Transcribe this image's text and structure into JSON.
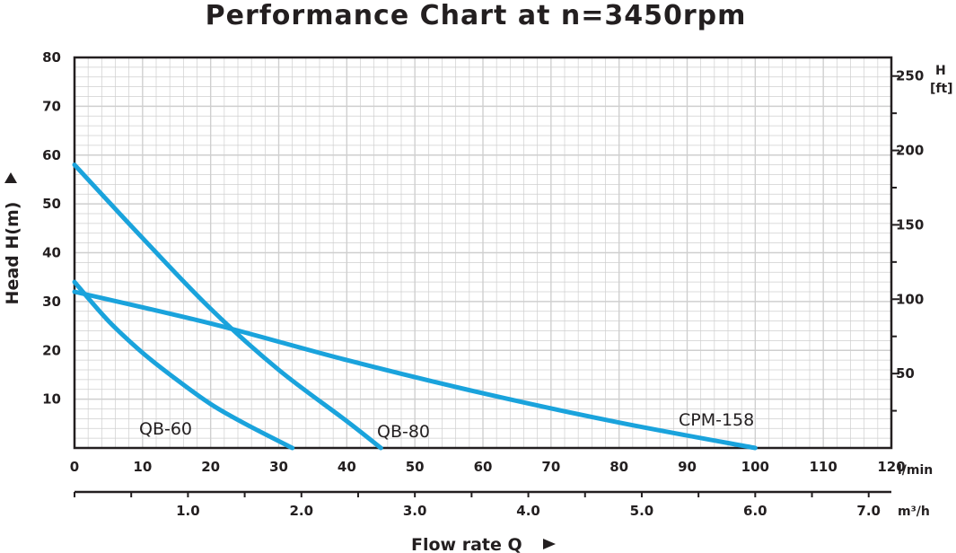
{
  "chart_data": {
    "type": "line",
    "title": "Performance Chart at n=3450rpm",
    "ylabel": "Head H(m)",
    "xlabel": "Flow rate Q",
    "ylim": [
      0,
      80
    ],
    "xlim": [
      0,
      120
    ],
    "x_unit": "l/min",
    "x2_unit": "m³/h",
    "x2lim": [
      0,
      7.2
    ],
    "y2_unit_top": "H",
    "y2_unit_bottom": "[ft]",
    "y2lim": [
      0,
      262.5
    ],
    "y_ticks": [
      10,
      20,
      30,
      40,
      50,
      60,
      70,
      80
    ],
    "x_ticks": [
      0,
      10,
      20,
      30,
      40,
      50,
      60,
      70,
      80,
      90,
      100,
      110,
      120
    ],
    "x2_ticks": [
      1.0,
      2.0,
      3.0,
      4.0,
      5.0,
      6.0,
      7.0
    ],
    "y2_ticks": [
      50,
      100,
      150,
      200,
      250
    ],
    "grid": true,
    "series": [
      {
        "name": "QB-60",
        "x": [
          0,
          5,
          10,
          15,
          20,
          25,
          32
        ],
        "y": [
          34,
          26,
          19.5,
          14,
          9,
          5,
          0
        ]
      },
      {
        "name": "QB-80",
        "x": [
          0,
          10,
          20,
          30,
          40,
          45
        ],
        "y": [
          58,
          43,
          28.5,
          16,
          5.5,
          0
        ]
      },
      {
        "name": "CPM-158",
        "x": [
          0,
          20,
          40,
          60,
          80,
          100
        ],
        "y": [
          32,
          25.5,
          18,
          11.2,
          5.2,
          0
        ]
      }
    ],
    "colors": {
      "curve": "#1aa3dc",
      "axis": "#231f20",
      "grid": "#cfcfcf"
    }
  }
}
